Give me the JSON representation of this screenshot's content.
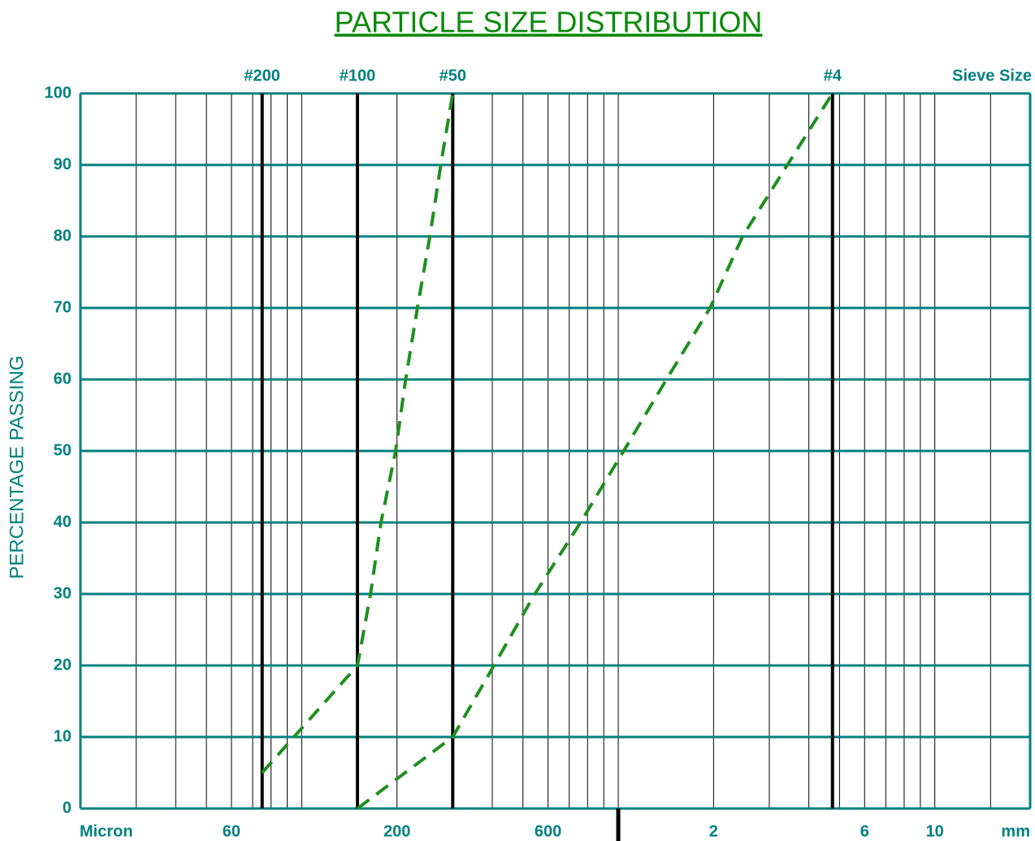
{
  "chart_data": {
    "type": "line",
    "title": "PARTICLE SIZE DISTRIBUTION",
    "ylabel": "PERCENTAGE PASSING",
    "xlabel_left": "Micron",
    "xlabel_right": "mm",
    "sieve_axis_label": "Sieve Size",
    "log_x": true,
    "xlim": [
      20,
      20000
    ],
    "ylim": [
      0,
      100
    ],
    "yticks": [
      0,
      10,
      20,
      30,
      40,
      50,
      60,
      70,
      80,
      90,
      100
    ],
    "xticks": [
      60,
      200,
      600,
      {
        "value": 2000,
        "label": "2"
      },
      {
        "value": 6000,
        "label": "6"
      },
      {
        "value": 10000,
        "label": "10"
      }
    ],
    "x_grid_lines": [
      30,
      40,
      50,
      60,
      70,
      80,
      90,
      100,
      200,
      300,
      400,
      500,
      600,
      700,
      800,
      900,
      1000,
      2000,
      3000,
      4000,
      5000,
      6000,
      7000,
      8000,
      9000,
      10000,
      15000
    ],
    "x_unit_divider": 1000,
    "sieves": [
      {
        "label": "#200",
        "value": 75
      },
      {
        "label": "#100",
        "value": 150
      },
      {
        "label": "#50",
        "value": 300
      },
      {
        "label": "#4",
        "value": 4750
      }
    ],
    "grid_color": "#008080",
    "series": [
      {
        "color": "#1f8f1f",
        "x": [
          75,
          150,
          165,
          178,
          198,
          213,
          232,
          254,
          275,
          300
        ],
        "values": [
          5,
          20,
          30,
          40,
          50,
          60,
          70,
          80,
          90,
          100
        ]
      },
      {
        "color": "#1f8f1f",
        "x": [
          150,
          300,
          405,
          545,
          760,
          1040,
          1420,
          1950,
          2470,
          3420,
          4750
        ],
        "values": [
          0,
          10,
          20,
          30,
          40,
          50,
          60,
          70,
          80,
          90,
          100
        ]
      }
    ]
  }
}
